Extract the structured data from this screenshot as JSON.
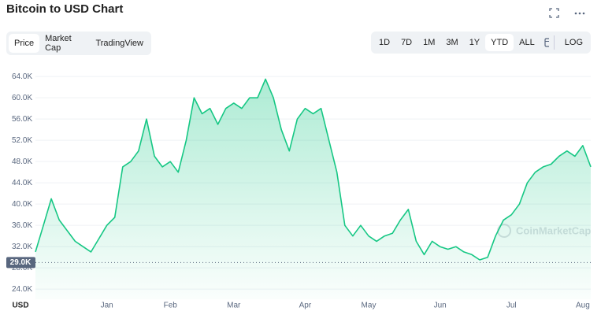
{
  "header": {
    "title": "Bitcoin to USD Chart"
  },
  "tabs": [
    "Price",
    "Market Cap",
    "TradingView"
  ],
  "ranges": [
    "1D",
    "7D",
    "1M",
    "3M",
    "1Y",
    "YTD",
    "ALL"
  ],
  "log_button": "LOG",
  "chart_data": {
    "type": "area",
    "color": "#16c784",
    "watermark": "CoinMarketCap",
    "currency": "USD",
    "categories": [
      null,
      null,
      null,
      null,
      null,
      null,
      null,
      null,
      null,
      "Jan",
      null,
      null,
      null,
      null,
      null,
      null,
      null,
      "Feb",
      null,
      null,
      null,
      null,
      null,
      null,
      null,
      "Mar",
      null,
      null,
      null,
      null,
      null,
      null,
      null,
      null,
      "Apr",
      null,
      null,
      null,
      null,
      null,
      null,
      null,
      "May",
      null,
      null,
      null,
      null,
      null,
      null,
      null,
      null,
      "Jun",
      null,
      null,
      null,
      null,
      null,
      null,
      null,
      null,
      "Jul",
      null,
      null,
      null,
      null,
      null,
      null,
      null,
      null,
      "Aug",
      null
    ],
    "values": [
      31000,
      36000,
      41000,
      37000,
      35000,
      33000,
      32000,
      31000,
      33500,
      36000,
      37500,
      47000,
      48000,
      50000,
      56000,
      49000,
      47000,
      48000,
      46000,
      52000,
      60000,
      57000,
      58000,
      55000,
      58000,
      59000,
      58000,
      60000,
      60000,
      63500,
      60000,
      54000,
      50000,
      56000,
      58000,
      57000,
      58000,
      52000,
      46000,
      36000,
      34000,
      36000,
      34000,
      33000,
      34000,
      34500,
      37000,
      39000,
      33000,
      30500,
      33000,
      32000,
      31500,
      32000,
      31000,
      30500,
      29500,
      30000,
      34000,
      37000,
      38000,
      40000,
      44000,
      46000,
      47000,
      47500,
      49000,
      50000,
      49000,
      51000,
      47000
    ],
    "ylim": [
      22100,
      65800
    ],
    "yticks": [
      {
        "value": 24000,
        "label": "24.0K"
      },
      {
        "value": 28000,
        "label": "28.0K"
      },
      {
        "value": 32000,
        "label": "32.0K"
      },
      {
        "value": 36000,
        "label": "36.0K"
      },
      {
        "value": 40000,
        "label": "40.0K"
      },
      {
        "value": 44000,
        "label": "44.0K"
      },
      {
        "value": 48000,
        "label": "48.0K"
      },
      {
        "value": 52000,
        "label": "52.0K"
      },
      {
        "value": 56000,
        "label": "56.0K"
      },
      {
        "value": 60000,
        "label": "60.0K"
      },
      {
        "value": 64000,
        "label": "64.0K"
      }
    ],
    "grid": true,
    "reference_line": {
      "value": 29000,
      "label": "29.0K"
    }
  }
}
